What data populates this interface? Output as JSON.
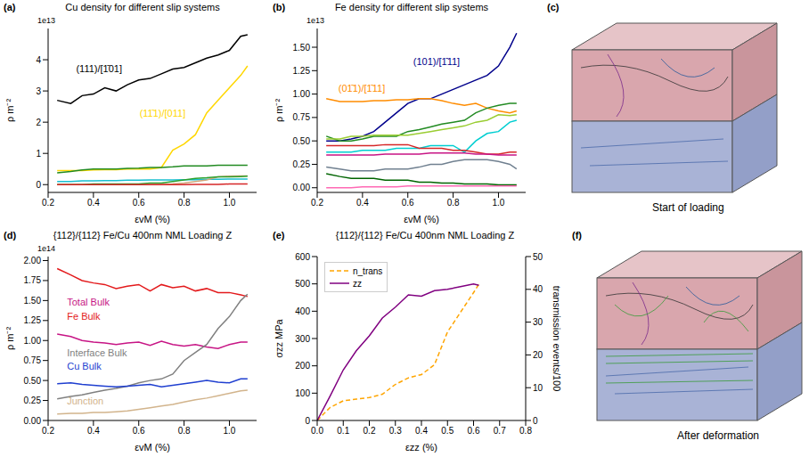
{
  "chart_data": [
    {
      "type": "line",
      "panel_label": "(a)",
      "title": "Cu density for different slip systems",
      "xlabel": "εvM (%)",
      "ylabel": "ρ m⁻²",
      "offset_text": "1e13",
      "xlim": [
        0.2,
        1.12
      ],
      "xticks": [
        0.2,
        0.4,
        0.6,
        0.8,
        {
          "value": 1,
          "label": "1.0"
        }
      ],
      "ylim": [
        -0.25,
        5.0
      ],
      "yticks": [
        0,
        1,
        2,
        3,
        4
      ],
      "x": [
        0.24,
        0.3,
        0.35,
        0.4,
        0.45,
        0.5,
        0.55,
        0.6,
        0.65,
        0.7,
        0.75,
        0.8,
        0.85,
        0.9,
        0.95,
        1.0,
        1.05,
        1.08
      ],
      "series": [
        {
          "name": "(111)/[1̄01]",
          "color": "#000000",
          "label_at": [
            0.3,
            3.7
          ],
          "values": [
            2.7,
            2.6,
            2.85,
            2.9,
            3.1,
            3.0,
            3.2,
            3.35,
            3.4,
            3.55,
            3.7,
            3.75,
            3.9,
            4.05,
            4.15,
            4.3,
            4.75,
            4.8
          ]
        },
        {
          "name": "(11̄1)/[011]",
          "color": "#ffd700",
          "label_at": [
            0.58,
            2.3
          ],
          "values": [
            0.45,
            0.45,
            0.45,
            0.47,
            0.48,
            0.48,
            0.5,
            0.5,
            0.5,
            0.55,
            1.1,
            1.3,
            1.6,
            2.3,
            2.7,
            3.1,
            3.5,
            3.8
          ]
        },
        {
          "color": "#228b22",
          "values": [
            0.38,
            0.42,
            0.47,
            0.5,
            0.5,
            0.5,
            0.52,
            0.53,
            0.55,
            0.55,
            0.57,
            0.6,
            0.6,
            0.6,
            0.62,
            0.62,
            0.62,
            0.62
          ]
        },
        {
          "color": "#17becf",
          "values": [
            0.1,
            0.1,
            0.12,
            0.12,
            0.13,
            0.13,
            0.14,
            0.14,
            0.15,
            0.15,
            0.15,
            0.16,
            0.16,
            0.17,
            0.17,
            0.18,
            0.18,
            0.18
          ]
        },
        {
          "color": "#d2a679",
          "values": [
            0,
            0,
            0,
            0,
            0,
            0,
            0,
            0,
            0,
            0,
            0.02,
            0.05,
            0.1,
            0.15,
            0.25,
            0.27,
            0.28,
            0.28
          ]
        },
        {
          "color": "#2ca02c",
          "values": [
            0,
            0,
            0,
            0.02,
            0.02,
            0.02,
            0.02,
            0.02,
            0.05,
            0.05,
            0.1,
            0.15,
            0.2,
            0.22,
            0.25,
            0.25,
            0.26,
            0.27
          ]
        },
        {
          "color": "#d62728",
          "values": [
            0,
            0,
            0,
            0,
            0,
            0,
            0,
            0,
            0,
            0,
            0,
            0,
            0.01,
            0.01,
            0.01,
            0.02,
            0.02,
            0.02
          ]
        }
      ]
    },
    {
      "type": "line",
      "panel_label": "(b)",
      "title": "Fe density for different slip systems",
      "xlabel": "εvM (%)",
      "ylabel": "ρ m⁻²",
      "offset_text": "1e13",
      "xlim": [
        0.2,
        1.12
      ],
      "xticks": [
        0.2,
        0.4,
        0.6,
        0.8,
        {
          "value": 1,
          "label": "1.0"
        }
      ],
      "ylim": [
        -0.05,
        1.7
      ],
      "yticks": [
        {
          "value": 0,
          "label": "0.00"
        },
        0.25,
        {
          "value": 0.5,
          "label": "0.50"
        },
        0.75,
        {
          "value": 1,
          "label": "1.00"
        },
        1.25,
        {
          "value": 1.5,
          "label": "1.50"
        }
      ],
      "x": [
        0.24,
        0.3,
        0.35,
        0.4,
        0.45,
        0.5,
        0.55,
        0.6,
        0.65,
        0.7,
        0.75,
        0.8,
        0.85,
        0.9,
        0.95,
        1.0,
        1.05,
        1.08
      ],
      "series": [
        {
          "name": "(101)/[1̄11]",
          "color": "#00008b",
          "label_at": [
            0.6,
            1.35
          ],
          "values": [
            0.5,
            0.5,
            0.52,
            0.55,
            0.6,
            0.7,
            0.8,
            0.9,
            0.95,
            0.95,
            1.0,
            1.05,
            1.1,
            1.15,
            1.2,
            1.3,
            1.5,
            1.65
          ]
        },
        {
          "name": "(01̄1)/[1̄11]",
          "color": "#ff8c00",
          "label_at": [
            0.27,
            1.06
          ],
          "values": [
            0.95,
            0.92,
            0.92,
            0.92,
            0.93,
            0.93,
            0.94,
            0.94,
            0.95,
            0.95,
            0.93,
            0.9,
            0.88,
            0.9,
            0.85,
            0.82,
            0.8,
            0.82
          ]
        },
        {
          "color": "#228b22",
          "values": [
            0.55,
            0.5,
            0.5,
            0.52,
            0.55,
            0.55,
            0.55,
            0.6,
            0.62,
            0.65,
            0.68,
            0.7,
            0.72,
            0.8,
            0.85,
            0.88,
            0.9,
            0.9
          ]
        },
        {
          "color": "#9acd32",
          "values": [
            0.52,
            0.52,
            0.55,
            0.55,
            0.56,
            0.56,
            0.56,
            0.56,
            0.58,
            0.6,
            0.62,
            0.64,
            0.66,
            0.7,
            0.72,
            0.78,
            0.77,
            0.78
          ]
        },
        {
          "color": "#00ced1",
          "values": [
            0.38,
            0.38,
            0.38,
            0.4,
            0.4,
            0.4,
            0.42,
            0.42,
            0.42,
            0.45,
            0.45,
            0.45,
            0.38,
            0.5,
            0.58,
            0.6,
            0.7,
            0.72
          ]
        },
        {
          "color": "#d62728",
          "values": [
            0.45,
            0.45,
            0.45,
            0.45,
            0.45,
            0.46,
            0.46,
            0.46,
            0.42,
            0.42,
            0.42,
            0.4,
            0.4,
            0.38,
            0.36,
            0.36,
            0.38,
            0.38
          ]
        },
        {
          "color": "#c71585",
          "values": [
            0.35,
            0.35,
            0.35,
            0.35,
            0.35,
            0.36,
            0.36,
            0.36,
            0.36,
            0.37,
            0.37,
            0.37,
            0.37,
            0.36,
            0.36,
            0.35,
            0.35,
            0.35
          ]
        },
        {
          "color": "#708090",
          "values": [
            0.22,
            0.2,
            0.18,
            0.18,
            0.18,
            0.2,
            0.2,
            0.2,
            0.22,
            0.25,
            0.25,
            0.28,
            0.3,
            0.3,
            0.3,
            0.28,
            0.25,
            0.2
          ]
        },
        {
          "color": "#006400",
          "values": [
            0.15,
            0.12,
            0.1,
            0.1,
            0.1,
            0.08,
            0.08,
            0.08,
            0.06,
            0.06,
            0.05,
            0.05,
            0.04,
            0.04,
            0.04,
            0.03,
            0.03,
            0.03
          ]
        },
        {
          "color": "#ff69b4",
          "values": [
            0,
            0,
            0,
            0.01,
            0.01,
            0.01,
            0.01,
            0.02,
            0.02,
            0.02,
            0.02,
            0.02,
            0.02,
            0.02,
            0.02,
            0.02,
            0.02,
            0.02
          ]
        }
      ]
    },
    {
      "type": "line",
      "panel_label": "(d)",
      "title": "{112}/{112} Fe/Cu 400nm NML Loading Z",
      "xlabel": "εvM (%)",
      "ylabel": "ρ m⁻²",
      "offset_text": "1e14",
      "xlim": [
        0.2,
        1.12
      ],
      "xticks": [
        0.2,
        0.4,
        0.6,
        0.8,
        {
          "value": 1,
          "label": "1.0"
        }
      ],
      "ylim": [
        0,
        2.05
      ],
      "yticks": [
        {
          "value": 0,
          "label": "0.00"
        },
        0.25,
        {
          "value": 0.5,
          "label": "0.50"
        },
        0.75,
        {
          "value": 1,
          "label": "1.00"
        },
        1.25,
        {
          "value": 1.5,
          "label": "1.50"
        },
        1.75,
        {
          "value": 2,
          "label": "2.00"
        }
      ],
      "x": [
        0.24,
        0.3,
        0.35,
        0.4,
        0.45,
        0.5,
        0.55,
        0.6,
        0.65,
        0.7,
        0.75,
        0.8,
        0.85,
        0.9,
        0.95,
        1.0,
        1.05,
        1.08
      ],
      "series": [
        {
          "name": "Total Bulk",
          "color": "#c71585",
          "label_at": [
            0.26,
            1.48
          ],
          "values": [
            1.08,
            1.05,
            1.0,
            0.98,
            0.97,
            0.95,
            0.97,
            0.98,
            0.94,
            0.99,
            0.95,
            0.93,
            0.95,
            0.92,
            0.9,
            0.95,
            0.98,
            0.98
          ]
        },
        {
          "name": "Fe Bulk",
          "color": "#e31a1c",
          "label_at": [
            0.26,
            1.3
          ],
          "values": [
            1.9,
            1.82,
            1.75,
            1.72,
            1.7,
            1.65,
            1.68,
            1.7,
            1.62,
            1.7,
            1.66,
            1.68,
            1.62,
            1.65,
            1.6,
            1.6,
            1.57,
            1.55
          ]
        },
        {
          "name": "Interface Bulk",
          "color": "#808080",
          "label_at": [
            0.26,
            0.85
          ],
          "values": [
            0.27,
            0.3,
            0.32,
            0.35,
            0.38,
            0.4,
            0.43,
            0.47,
            0.5,
            0.52,
            0.58,
            0.75,
            0.85,
            0.95,
            1.15,
            1.3,
            1.5,
            1.58
          ]
        },
        {
          "name": "Cu Bulk",
          "color": "#1f3fd0",
          "label_at": [
            0.26,
            0.68
          ],
          "values": [
            0.46,
            0.47,
            0.45,
            0.44,
            0.43,
            0.42,
            0.43,
            0.44,
            0.45,
            0.42,
            0.44,
            0.46,
            0.48,
            0.5,
            0.48,
            0.47,
            0.52,
            0.52
          ]
        },
        {
          "name": "Junction",
          "color": "#d2b48c",
          "label_at": [
            0.26,
            0.24
          ],
          "values": [
            0.08,
            0.09,
            0.09,
            0.1,
            0.1,
            0.11,
            0.12,
            0.14,
            0.16,
            0.18,
            0.2,
            0.23,
            0.26,
            0.28,
            0.31,
            0.34,
            0.37,
            0.38
          ]
        }
      ]
    },
    {
      "type": "line",
      "panel_label": "(e)",
      "title": "{112}/{112} Fe/Cu 400nm NML Loading Z",
      "xlabel": "εzz (%)",
      "ylabel": "σzz MPa",
      "y2label": "transmission events/100",
      "legend": "upper left",
      "xlim": [
        0,
        0.8
      ],
      "xticks": [
        {
          "value": 0,
          "label": "0.0"
        },
        0.1,
        0.2,
        0.3,
        0.4,
        0.5,
        0.6,
        0.7,
        0.8
      ],
      "ylim": [
        0,
        600
      ],
      "yticks": [
        0,
        100,
        200,
        300,
        400,
        500,
        600
      ],
      "y2lim": [
        0,
        50
      ],
      "y2ticks": [
        0,
        10,
        20,
        30,
        40,
        50
      ],
      "x": [
        0,
        0.05,
        0.1,
        0.15,
        0.2,
        0.25,
        0.3,
        0.35,
        0.4,
        0.45,
        0.5,
        0.55,
        0.6,
        0.62
      ],
      "series": [
        {
          "name": "n_trans",
          "color": "#ffa500",
          "line_style": "dashed",
          "axis": "y2",
          "values": [
            0,
            4,
            6,
            6.5,
            7,
            8,
            11,
            13,
            14,
            17,
            27,
            33,
            39,
            41.5
          ]
        },
        {
          "name": "zz",
          "color": "#800080",
          "line_style": "solid",
          "values": [
            0,
            90,
            185,
            255,
            310,
            375,
            415,
            460,
            455,
            475,
            480,
            490,
            500,
            495
          ]
        }
      ]
    }
  ],
  "images": [
    {
      "panel_label": "(c)",
      "caption": "Start of loading"
    },
    {
      "panel_label": "(f)",
      "caption": "After deformation"
    }
  ]
}
